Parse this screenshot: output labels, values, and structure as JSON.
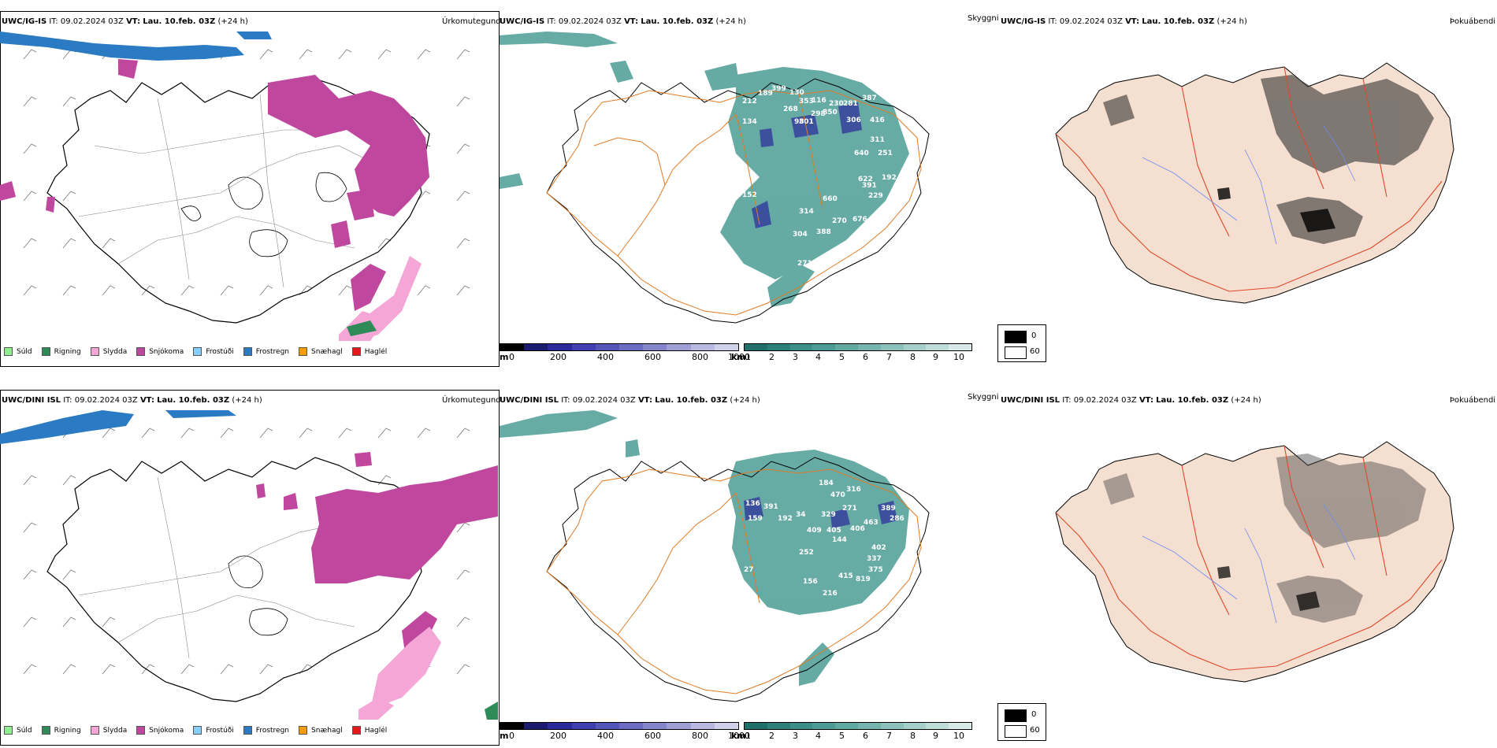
{
  "rows": [
    {
      "model": "UWC/IG-IS",
      "it_label": "IT:",
      "it_value": "09.02.2024 03Z",
      "vt_label": "VT:",
      "vt_value": "Lau. 10.feb. 03Z",
      "lead": "(+24 h)"
    },
    {
      "model": "UWC/DINI ISL",
      "it_label": "IT:",
      "it_value": "09.02.2024 03Z",
      "vt_label": "VT:",
      "vt_value": "Lau. 10.feb. 03Z",
      "lead": "(+24 h)"
    }
  ],
  "panel_titles": {
    "precip": "Úrkomutegund",
    "visibility": "Skyggni",
    "fog": "Þokuábendi"
  },
  "precip_legend": [
    {
      "label": "Súld",
      "color": "#90ee90"
    },
    {
      "label": "Rigning",
      "color": "#2e8b57"
    },
    {
      "label": "Slydda",
      "color": "#f4a6d7"
    },
    {
      "label": "Snjókoma",
      "color": "#c0479e"
    },
    {
      "label": "Frostúði",
      "color": "#87cefa"
    },
    {
      "label": "Frostregn",
      "color": "#2b7bc4"
    },
    {
      "label": "Snæhagl",
      "color": "#f39c12"
    },
    {
      "label": "Haglél",
      "color": "#e31a1c"
    }
  ],
  "height_scale": {
    "unit": "m",
    "ticks": [
      "0",
      "200",
      "400",
      "600",
      "800",
      "1000"
    ],
    "colors": [
      "#000000",
      "#1a1a6e",
      "#2a2a9a",
      "#3f3fb0",
      "#5555b8",
      "#6c6cc2",
      "#8585cc",
      "#9f9fd6",
      "#b8b8e0",
      "#d0d0ea"
    ]
  },
  "visibility_scale": {
    "unit": "km",
    "ticks": [
      "1",
      "2",
      "3",
      "4",
      "5",
      "6",
      "7",
      "8",
      "9",
      "10"
    ],
    "colors": [
      "#1f6f6a",
      "#2c807a",
      "#3b8f88",
      "#4c9c95",
      "#60a9a2",
      "#76b5af",
      "#8dc2bc",
      "#a5cfca",
      "#bedcd8",
      "#d8eae7"
    ]
  },
  "fog_scale": {
    "labels": [
      "0",
      "60"
    ]
  },
  "visibility_labels_row1": [
    "212",
    "189",
    "399",
    "130",
    "353",
    "116",
    "230",
    "281",
    "387",
    "134",
    "268",
    "298",
    "850",
    "306",
    "416",
    "98",
    "301",
    "311",
    "640",
    "251",
    "622",
    "192",
    "391",
    "229",
    "660",
    "314",
    "388",
    "304",
    "676",
    "152",
    "270",
    "271"
  ],
  "visibility_labels_row2": [
    "136",
    "391",
    "192",
    "159",
    "34",
    "329",
    "271",
    "409",
    "405",
    "406",
    "463",
    "252",
    "402",
    "415",
    "337",
    "375",
    "819",
    "316",
    "216",
    "389",
    "286",
    "27",
    "184",
    "470",
    "156",
    "144"
  ]
}
